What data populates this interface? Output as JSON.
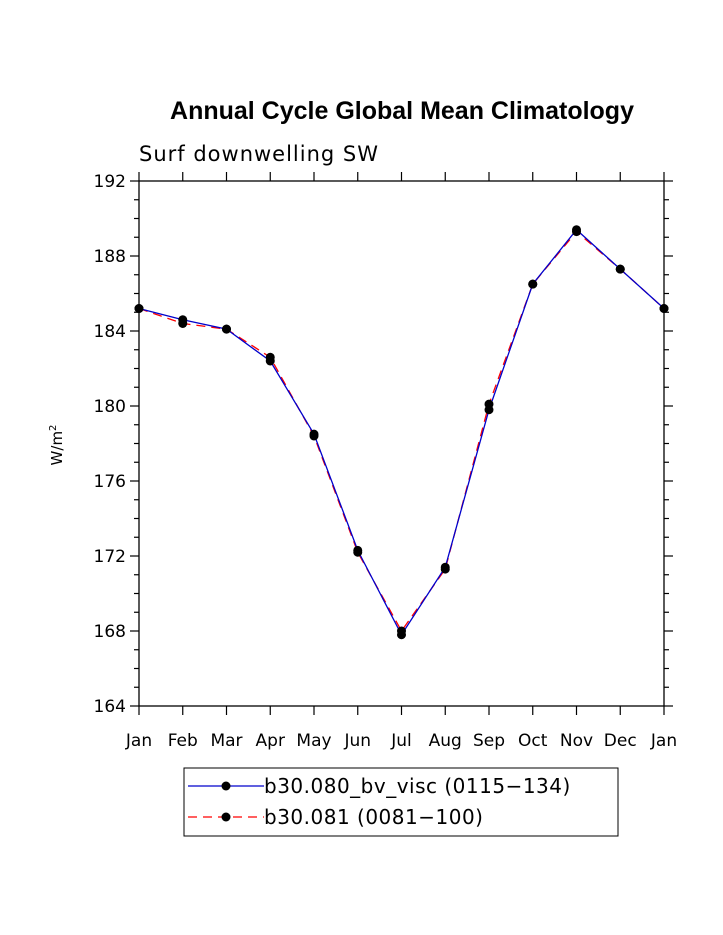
{
  "chart_data": {
    "type": "line",
    "title": "Annual Cycle Global Mean Climatology",
    "subtitle": "Surf downwelling SW",
    "ylabel": "W/m",
    "ylabel_sup": "2",
    "xlabel": "",
    "categories": [
      "Jan",
      "Feb",
      "Mar",
      "Apr",
      "May",
      "Jun",
      "Jul",
      "Aug",
      "Sep",
      "Oct",
      "Nov",
      "Dec",
      "Jan"
    ],
    "ylim": [
      164,
      192
    ],
    "yticks": [
      "164",
      "168",
      "172",
      "176",
      "180",
      "184",
      "188",
      "192"
    ],
    "grid": false,
    "legend_position": "bottom",
    "series": [
      {
        "name": "b30.080_bv_visc (0115−134)",
        "color": "#0000cc",
        "dash": false,
        "values": [
          185.2,
          184.6,
          184.1,
          182.4,
          178.5,
          172.3,
          167.8,
          171.4,
          179.8,
          186.5,
          189.4,
          187.3,
          185.2
        ]
      },
      {
        "name": "b30.081 (0081−100)",
        "color": "#ff0000",
        "dash": true,
        "values": [
          185.2,
          184.4,
          184.1,
          182.6,
          178.4,
          172.2,
          168.0,
          171.3,
          180.1,
          186.5,
          189.3,
          187.3,
          185.2
        ]
      }
    ]
  }
}
